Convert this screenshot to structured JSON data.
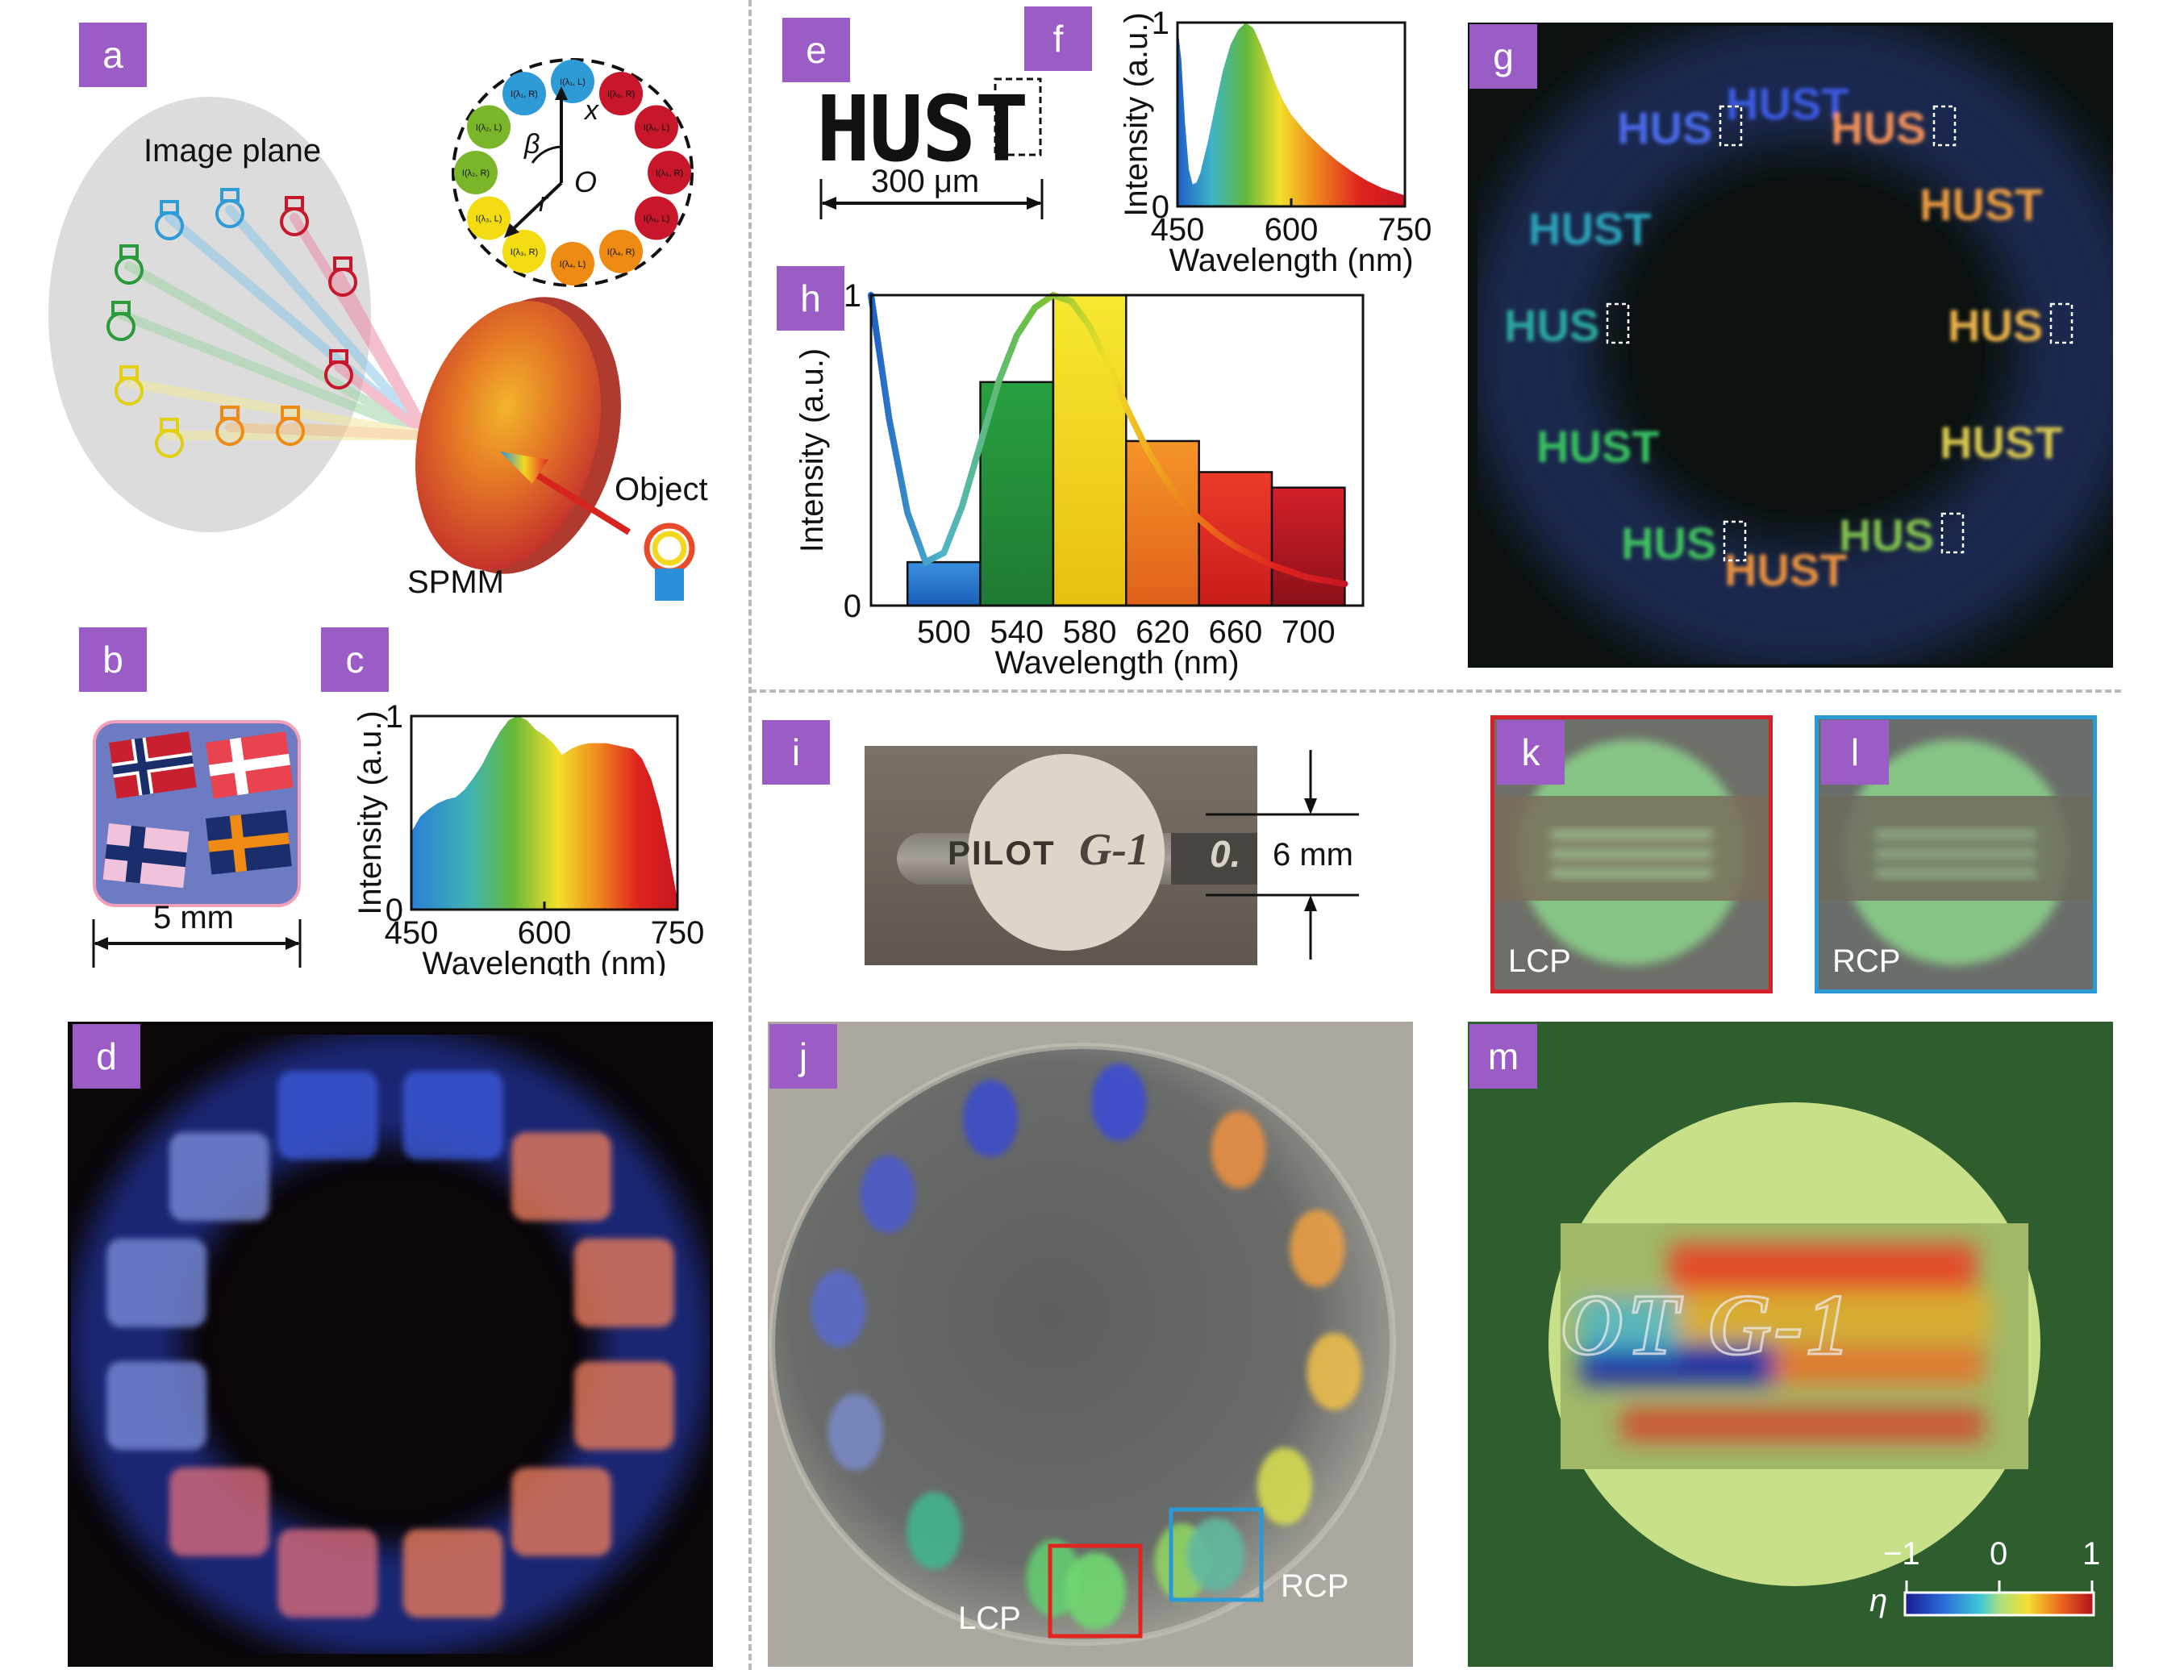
{
  "panels": {
    "a": {
      "label": "a",
      "image_plane": "Image plane",
      "spmm": "SPMM",
      "object": "Object",
      "circle_labels": [
        "I(λ₁, L)",
        "I(λ₆, R)",
        "I(λ₆, L)",
        "I(λ₅, R)",
        "I(λ₅, L)",
        "I(λ₄, R)",
        "I(λ₄, L)",
        "I(λ₃, R)",
        "I(λ₃, L)",
        "I(λ₂, R)",
        "I(λ₂, L)",
        "I(λ₁, R)"
      ],
      "circle_colors": [
        "#2e9ad6",
        "#c8162a",
        "#c8162a",
        "#c8162a",
        "#c8162a",
        "#ef8a12",
        "#ef8a12",
        "#f3dc12",
        "#f3dc12",
        "#7ab62a",
        "#7ab62a",
        "#2e9ad6"
      ],
      "axis_x": "x",
      "axis_r": "r",
      "axis_beta": "β",
      "origin": "O"
    },
    "b": {
      "label": "b",
      "scale": "5 mm"
    },
    "c": {
      "label": "c"
    },
    "d": {
      "label": "d"
    },
    "e": {
      "label": "e",
      "text": "HUST",
      "scale": "300 μm"
    },
    "f": {
      "label": "f"
    },
    "g": {
      "label": "g",
      "word": "HUST",
      "word_cut": "HUS"
    },
    "h": {
      "label": "h"
    },
    "i": {
      "label": "i",
      "pen_text": "PILOT",
      "pen_model": "G-1",
      "pen_tip": "0.",
      "scale": "6 mm"
    },
    "j": {
      "label": "j",
      "lcp": "LCP",
      "rcp": "RCP"
    },
    "k": {
      "label": "k",
      "tag": "LCP"
    },
    "l": {
      "label": "l",
      "tag": "RCP"
    },
    "m": {
      "label": "m",
      "text": "OT G-1",
      "colorbar_symbol": "η",
      "colorbar_ticks": [
        "−1",
        "0",
        "1"
      ]
    }
  },
  "chart_data": [
    {
      "type": "area",
      "panel": "c",
      "xlabel": "Wavelength (nm)",
      "ylabel": "Intensity (a.u.)",
      "xlim": [
        450,
        750
      ],
      "ylim": [
        0,
        1
      ],
      "xticks": [
        "450",
        "600",
        "750"
      ],
      "yticks": [
        "0",
        "1"
      ],
      "x": [
        450,
        460,
        470,
        480,
        490,
        500,
        510,
        520,
        530,
        540,
        550,
        560,
        570,
        580,
        590,
        600,
        610,
        620,
        630,
        640,
        650,
        660,
        670,
        680,
        690,
        700,
        710,
        720,
        730,
        740,
        750
      ],
      "y": [
        0.4,
        0.48,
        0.52,
        0.55,
        0.57,
        0.58,
        0.62,
        0.68,
        0.75,
        0.84,
        0.92,
        0.98,
        1.0,
        0.98,
        0.93,
        0.9,
        0.86,
        0.8,
        0.83,
        0.85,
        0.86,
        0.86,
        0.86,
        0.85,
        0.84,
        0.83,
        0.78,
        0.68,
        0.52,
        0.3,
        0.05
      ]
    },
    {
      "type": "area",
      "panel": "f",
      "xlabel": "Wavelength (nm)",
      "ylabel": "Intensity (a.u.)",
      "xlim": [
        450,
        750
      ],
      "ylim": [
        0,
        1
      ],
      "xticks": [
        "450",
        "600",
        "750"
      ],
      "yticks": [
        "0",
        "1"
      ],
      "x": [
        450,
        455,
        460,
        465,
        470,
        475,
        480,
        490,
        500,
        510,
        520,
        530,
        540,
        550,
        560,
        570,
        580,
        590,
        600,
        620,
        640,
        660,
        680,
        700,
        720,
        750
      ],
      "y": [
        0.98,
        0.8,
        0.45,
        0.2,
        0.12,
        0.13,
        0.18,
        0.35,
        0.55,
        0.74,
        0.88,
        0.96,
        1.0,
        0.97,
        0.88,
        0.77,
        0.66,
        0.57,
        0.5,
        0.4,
        0.32,
        0.25,
        0.19,
        0.14,
        0.1,
        0.06
      ]
    },
    {
      "type": "bar",
      "panel": "h",
      "xlabel": "Wavelength (nm)",
      "ylabel": "Intensity (a.u.)",
      "categories": [
        "500",
        "540",
        "580",
        "620",
        "660",
        "700"
      ],
      "values": [
        0.14,
        0.72,
        1.0,
        0.53,
        0.43,
        0.38
      ],
      "bar_colors": [
        "#1f6fc4",
        "#2c9a3a",
        "#f4d81e",
        "#ef7a1c",
        "#e02b24",
        "#b3141e"
      ],
      "ylim": [
        0,
        1
      ],
      "yticks": [
        "0",
        "1"
      ],
      "curve_x": [
        460,
        470,
        480,
        490,
        500,
        510,
        520,
        530,
        540,
        550,
        560,
        570,
        580,
        590,
        600,
        610,
        620,
        630,
        640,
        650,
        660,
        670,
        680,
        690,
        700,
        710,
        720
      ],
      "curve_y": [
        1.0,
        0.6,
        0.3,
        0.14,
        0.17,
        0.32,
        0.52,
        0.72,
        0.87,
        0.96,
        1.0,
        0.98,
        0.9,
        0.78,
        0.64,
        0.52,
        0.42,
        0.34,
        0.28,
        0.23,
        0.19,
        0.16,
        0.13,
        0.11,
        0.09,
        0.08,
        0.07
      ]
    }
  ]
}
